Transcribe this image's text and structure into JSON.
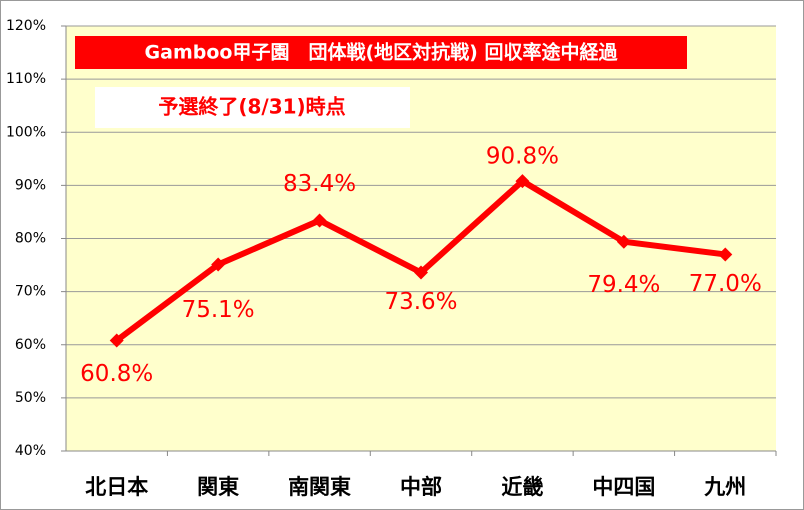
{
  "chart_data": {
    "type": "line",
    "title": "Gamboo甲子園　団体戦(地区対抗戦) 回収率途中経過",
    "subtitle": "予選終了(8/31)時点",
    "categories": [
      "北日本",
      "関東",
      "南関東",
      "中部",
      "近畿",
      "中四国",
      "九州"
    ],
    "series": [
      {
        "color": "#ff0000",
        "values": [
          60.8,
          75.1,
          83.4,
          73.6,
          90.8,
          79.4,
          77.0
        ],
        "value_labels": [
          "60.8%",
          "75.1%",
          "83.4%",
          "73.6%",
          "90.8%",
          "79.4%",
          "77.0%"
        ]
      }
    ],
    "ylim": [
      40,
      120
    ],
    "yticks": [
      {
        "value": 40,
        "label": "40%"
      },
      {
        "value": 50,
        "label": "50%"
      },
      {
        "value": 60,
        "label": "60%"
      },
      {
        "value": 70,
        "label": "70%"
      },
      {
        "value": 80,
        "label": "80%"
      },
      {
        "value": 90,
        "label": "90%"
      },
      {
        "value": 100,
        "label": "100%"
      },
      {
        "value": 110,
        "label": "110%"
      },
      {
        "value": 120,
        "label": "120%"
      }
    ],
    "grid": true
  }
}
